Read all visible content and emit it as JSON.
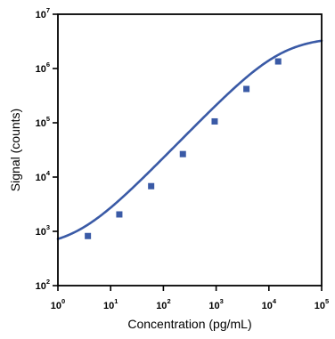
{
  "chart_data": {
    "type": "line",
    "xlabel": "Concentration (pg/mL)",
    "ylabel": "Signal (counts)",
    "xscale": "log",
    "yscale": "log",
    "xlim": [
      1,
      100000
    ],
    "ylim": [
      100,
      10000000
    ],
    "x_ticks": [
      {
        "base": "10",
        "exp": "0"
      },
      {
        "base": "10",
        "exp": "1"
      },
      {
        "base": "10",
        "exp": "2"
      },
      {
        "base": "10",
        "exp": "3"
      },
      {
        "base": "10",
        "exp": "4"
      },
      {
        "base": "10",
        "exp": "5"
      }
    ],
    "y_ticks": [
      {
        "base": "10",
        "exp": "2"
      },
      {
        "base": "10",
        "exp": "3"
      },
      {
        "base": "10",
        "exp": "4"
      },
      {
        "base": "10",
        "exp": "5"
      },
      {
        "base": "10",
        "exp": "6"
      },
      {
        "base": "10",
        "exp": "7"
      }
    ],
    "series": [
      {
        "color": "#3a5aa6",
        "points": [
          {
            "x": 3.7,
            "y": 820
          },
          {
            "x": 14.6,
            "y": 2050
          },
          {
            "x": 58.6,
            "y": 6800
          },
          {
            "x": 234,
            "y": 26500
          },
          {
            "x": 938,
            "y": 106000
          },
          {
            "x": 3750,
            "y": 420000
          },
          {
            "x": 15000,
            "y": 1350000
          }
        ],
        "fit_curve": {
          "model": "4PL",
          "bottom": 500,
          "top": 3800000,
          "ec50": 17000,
          "hill": 1.0
        }
      }
    ],
    "grid": false,
    "legend": "none"
  }
}
